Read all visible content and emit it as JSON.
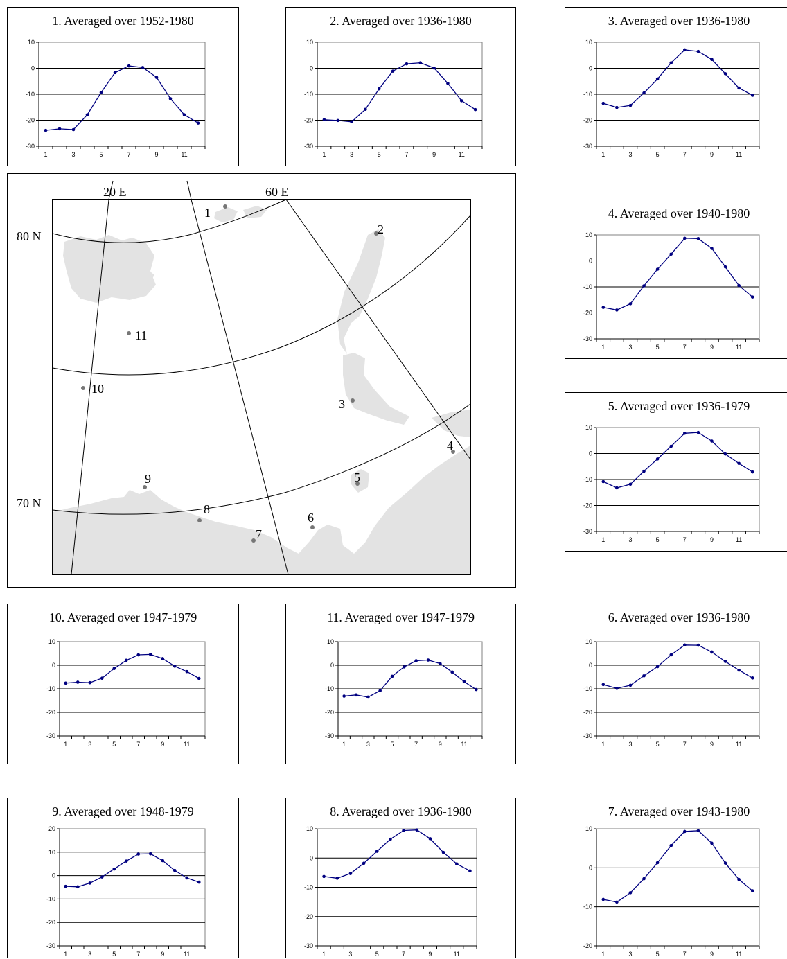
{
  "months": [
    "1",
    "3",
    "5",
    "7",
    "9",
    "11"
  ],
  "colors": {
    "series": "#000080",
    "land": "#e3e3e3",
    "graticule": "#000000",
    "station": "#777777"
  },
  "chart_data": [
    {
      "id": "p1",
      "type": "line",
      "title": "1. Averaged over 1952-1980",
      "x": [
        1,
        2,
        3,
        4,
        5,
        6,
        7,
        8,
        9,
        10,
        11,
        12
      ],
      "values": [
        -23.9,
        -23.3,
        -23.6,
        -17.9,
        -9.3,
        -1.7,
        0.9,
        0.3,
        -3.5,
        -11.7,
        -17.9,
        -21.1
      ],
      "ylim": [
        -30,
        10
      ],
      "yticks": [
        10,
        0,
        -10,
        -20,
        -30
      ],
      "grid": true
    },
    {
      "id": "p2",
      "type": "line",
      "title": "2. Averaged over 1936-1980",
      "x": [
        1,
        2,
        3,
        4,
        5,
        6,
        7,
        8,
        9,
        10,
        11,
        12
      ],
      "values": [
        -19.8,
        -20.1,
        -20.6,
        -15.8,
        -7.9,
        -1.1,
        1.7,
        2.1,
        0.1,
        -5.8,
        -12.5,
        -15.9
      ],
      "ylim": [
        -30,
        10
      ],
      "yticks": [
        10,
        0,
        -10,
        -20,
        -30
      ],
      "grid": true
    },
    {
      "id": "p3",
      "type": "line",
      "title": "3. Averaged over 1936-1980",
      "x": [
        1,
        2,
        3,
        4,
        5,
        6,
        7,
        8,
        9,
        10,
        11,
        12
      ],
      "values": [
        -13.5,
        -15.1,
        -14.3,
        -9.5,
        -4.1,
        2.1,
        7.1,
        6.5,
        3.4,
        -2.1,
        -7.6,
        -10.4
      ],
      "ylim": [
        -30,
        10
      ],
      "yticks": [
        10,
        0,
        -10,
        -20,
        -30
      ],
      "grid": true
    },
    {
      "id": "p4",
      "type": "line",
      "title": "4. Averaged over 1940-1980",
      "x": [
        1,
        2,
        3,
        4,
        5,
        6,
        7,
        8,
        9,
        10,
        11,
        12
      ],
      "values": [
        -17.9,
        -18.9,
        -16.5,
        -9.6,
        -3.2,
        2.6,
        8.7,
        8.6,
        4.8,
        -2.3,
        -9.5,
        -13.9
      ],
      "ylim": [
        -30,
        10
      ],
      "yticks": [
        10,
        0,
        -10,
        -20,
        -30
      ],
      "grid": true
    },
    {
      "id": "p5",
      "type": "line",
      "title": "5. Averaged over 1936-1979",
      "x": [
        1,
        2,
        3,
        4,
        5,
        6,
        7,
        8,
        9,
        10,
        11,
        12
      ],
      "values": [
        -10.8,
        -13.2,
        -11.8,
        -6.8,
        -2.1,
        2.8,
        7.8,
        8.1,
        4.8,
        -0.2,
        -3.8,
        -7.1
      ],
      "ylim": [
        -30,
        10
      ],
      "yticks": [
        10,
        0,
        -10,
        -20,
        -30
      ],
      "grid": true
    },
    {
      "id": "p10",
      "type": "line",
      "title": "10. Averaged over 1947-1979",
      "x": [
        1,
        2,
        3,
        4,
        5,
        6,
        7,
        8,
        9,
        10,
        11,
        12
      ],
      "values": [
        -7.6,
        -7.2,
        -7.4,
        -5.5,
        -1.4,
        2.1,
        4.4,
        4.6,
        2.8,
        -0.4,
        -2.7,
        -5.6
      ],
      "ylim": [
        -30,
        10
      ],
      "yticks": [
        10,
        0,
        -10,
        -20,
        -30
      ],
      "grid": true
    },
    {
      "id": "p11",
      "type": "line",
      "title": "11. Averaged over 1947-1979",
      "x": [
        1,
        2,
        3,
        4,
        5,
        6,
        7,
        8,
        9,
        10,
        11,
        12
      ],
      "values": [
        -13.1,
        -12.6,
        -13.5,
        -10.8,
        -4.7,
        -0.7,
        1.9,
        2.2,
        0.7,
        -2.9,
        -7.0,
        -10.3
      ],
      "ylim": [
        -30,
        10
      ],
      "yticks": [
        10,
        0,
        -10,
        -20,
        -30
      ],
      "grid": true
    },
    {
      "id": "p6",
      "type": "line",
      "title": "6. Averaged over 1936-1980",
      "x": [
        1,
        2,
        3,
        4,
        5,
        6,
        7,
        8,
        9,
        10,
        11,
        12
      ],
      "values": [
        -8.2,
        -9.8,
        -8.5,
        -4.5,
        -0.6,
        4.4,
        8.6,
        8.5,
        5.6,
        1.6,
        -2.1,
        -5.4
      ],
      "ylim": [
        -30,
        10
      ],
      "yticks": [
        10,
        0,
        -10,
        -20,
        -30
      ],
      "grid": true
    },
    {
      "id": "p9",
      "type": "line",
      "title": "9. Averaged over 1948-1979",
      "x": [
        1,
        2,
        3,
        4,
        5,
        6,
        7,
        8,
        9,
        10,
        11,
        12
      ],
      "values": [
        -4.6,
        -4.8,
        -3.2,
        -0.6,
        2.8,
        6.2,
        9.2,
        9.3,
        6.4,
        2.2,
        -1.0,
        -2.8
      ],
      "ylim": [
        -30,
        20
      ],
      "yticks": [
        20,
        10,
        0,
        -10,
        -20,
        -30
      ],
      "grid": true
    },
    {
      "id": "p8",
      "type": "line",
      "title": "8. Averaged over 1936-1980",
      "x": [
        1,
        2,
        3,
        4,
        5,
        6,
        7,
        8,
        9,
        10,
        11,
        12
      ],
      "values": [
        -6.3,
        -6.9,
        -5.3,
        -1.8,
        2.3,
        6.4,
        9.4,
        9.6,
        6.6,
        1.9,
        -2.0,
        -4.4
      ],
      "ylim": [
        -30,
        10
      ],
      "yticks": [
        10,
        0,
        -10,
        -20,
        -30
      ],
      "grid": true
    },
    {
      "id": "p7",
      "type": "line",
      "title": "7. Averaged over 1943-1980",
      "x": [
        1,
        2,
        3,
        4,
        5,
        6,
        7,
        8,
        9,
        10,
        11,
        12
      ],
      "values": [
        -8.1,
        -8.8,
        -6.4,
        -2.8,
        1.3,
        5.7,
        9.3,
        9.5,
        6.3,
        1.2,
        -3.0,
        -5.9
      ],
      "ylim": [
        -20,
        10
      ],
      "yticks": [
        10,
        0,
        -10,
        -20
      ],
      "grid": true
    }
  ],
  "map": {
    "meridian_labels": [
      "20 E",
      "60 E"
    ],
    "parallel_labels": [
      "80 N",
      "70 N"
    ],
    "station_labels": [
      "1",
      "2",
      "3",
      "4",
      "5",
      "6",
      "7",
      "8",
      "9",
      "10",
      "11"
    ]
  }
}
